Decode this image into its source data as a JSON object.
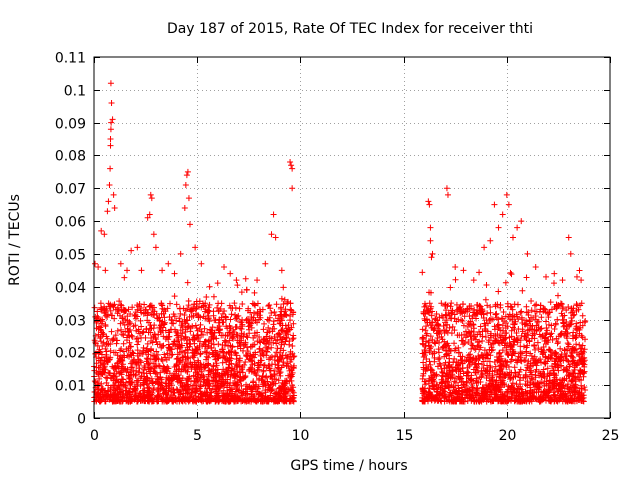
{
  "chart_data": {
    "type": "scatter",
    "title": "Day 187 of 2015, Rate Of TEC Index for receiver thti",
    "xlabel": "GPS time / hours",
    "ylabel": "ROTI / TECUs",
    "xlim": [
      0,
      25
    ],
    "ylim": [
      0,
      0.11
    ],
    "x_ticks": [
      0,
      5,
      10,
      15,
      20,
      25
    ],
    "x_tick_labels": [
      "0",
      "5",
      "10",
      "15",
      "20",
      "25"
    ],
    "y_ticks": [
      0,
      0.01,
      0.02,
      0.03,
      0.04,
      0.05,
      0.06,
      0.07,
      0.08,
      0.09,
      0.1,
      0.11
    ],
    "y_tick_labels": [
      "0",
      "0.01",
      "0.02",
      "0.03",
      "0.04",
      "0.05",
      "0.06",
      "0.07",
      "0.08",
      "0.09",
      "0.1",
      "0.11"
    ],
    "grid": true,
    "marker": "+",
    "series": [
      {
        "name": "ROTI",
        "color": "#ff0000",
        "segments": [
          {
            "x_range": [
              0,
              9.7
            ],
            "typical_range": [
              0.005,
              0.035
            ]
          },
          {
            "x_range": [
              15.9,
              23.8
            ],
            "typical_range": [
              0.005,
              0.035
            ]
          }
        ],
        "points": [
          [
            0.05,
            0.047
          ],
          [
            0.2,
            0.046
          ],
          [
            0.35,
            0.057
          ],
          [
            0.5,
            0.056
          ],
          [
            0.55,
            0.045
          ],
          [
            0.65,
            0.063
          ],
          [
            0.7,
            0.066
          ],
          [
            0.75,
            0.071
          ],
          [
            0.78,
            0.076
          ],
          [
            0.8,
            0.083
          ],
          [
            0.8,
            0.085
          ],
          [
            0.82,
            0.088
          ],
          [
            0.83,
            0.09
          ],
          [
            0.85,
            0.096
          ],
          [
            0.82,
            0.102
          ],
          [
            0.9,
            0.091
          ],
          [
            0.95,
            0.068
          ],
          [
            1.0,
            0.064
          ],
          [
            1.3,
            0.047
          ],
          [
            1.6,
            0.045
          ],
          [
            1.8,
            0.051
          ],
          [
            2.1,
            0.052
          ],
          [
            2.3,
            0.045
          ],
          [
            2.6,
            0.061
          ],
          [
            2.7,
            0.062
          ],
          [
            2.75,
            0.068
          ],
          [
            2.8,
            0.067
          ],
          [
            2.9,
            0.056
          ],
          [
            3.0,
            0.052
          ],
          [
            3.3,
            0.045
          ],
          [
            3.6,
            0.047
          ],
          [
            3.9,
            0.044
          ],
          [
            4.2,
            0.05
          ],
          [
            4.4,
            0.064
          ],
          [
            4.45,
            0.071
          ],
          [
            4.5,
            0.074
          ],
          [
            4.55,
            0.075
          ],
          [
            4.6,
            0.067
          ],
          [
            4.65,
            0.059
          ],
          [
            4.9,
            0.052
          ],
          [
            5.2,
            0.047
          ],
          [
            5.6,
            0.04
          ],
          [
            6.3,
            0.046
          ],
          [
            6.6,
            0.044
          ],
          [
            6.9,
            0.042
          ],
          [
            7.4,
            0.039
          ],
          [
            7.9,
            0.042
          ],
          [
            8.3,
            0.047
          ],
          [
            8.6,
            0.056
          ],
          [
            8.7,
            0.062
          ],
          [
            8.8,
            0.055
          ],
          [
            9.1,
            0.045
          ],
          [
            9.5,
            0.078
          ],
          [
            9.55,
            0.077
          ],
          [
            9.6,
            0.076
          ],
          [
            9.6,
            0.07
          ],
          [
            16.2,
            0.066
          ],
          [
            16.25,
            0.065
          ],
          [
            16.3,
            0.058
          ],
          [
            16.3,
            0.054
          ],
          [
            16.35,
            0.049
          ],
          [
            16.4,
            0.05
          ],
          [
            17.1,
            0.07
          ],
          [
            17.15,
            0.068
          ],
          [
            17.5,
            0.046
          ],
          [
            17.9,
            0.045
          ],
          [
            18.4,
            0.042
          ],
          [
            18.9,
            0.052
          ],
          [
            19.2,
            0.054
          ],
          [
            19.4,
            0.065
          ],
          [
            19.6,
            0.058
          ],
          [
            19.8,
            0.062
          ],
          [
            20.0,
            0.068
          ],
          [
            20.1,
            0.065
          ],
          [
            20.3,
            0.055
          ],
          [
            20.5,
            0.058
          ],
          [
            20.7,
            0.06
          ],
          [
            21.0,
            0.05
          ],
          [
            21.4,
            0.046
          ],
          [
            21.9,
            0.043
          ],
          [
            22.3,
            0.044
          ],
          [
            22.7,
            0.042
          ],
          [
            23.0,
            0.055
          ],
          [
            23.1,
            0.05
          ],
          [
            23.4,
            0.043
          ],
          [
            23.6,
            0.042
          ]
        ]
      }
    ]
  }
}
